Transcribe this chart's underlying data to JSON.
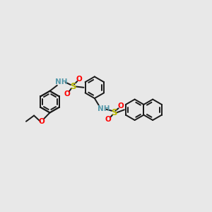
{
  "bg_color": "#e8e8e8",
  "bond_color": "#1a1a1a",
  "S_color": "#b8b800",
  "O_color": "#ff0000",
  "N_color": "#0000cc",
  "NH_color": "#5599aa",
  "figsize": [
    3.0,
    3.0
  ],
  "dpi": 100,
  "xlim": [
    0,
    10
  ],
  "ylim": [
    0,
    10
  ]
}
